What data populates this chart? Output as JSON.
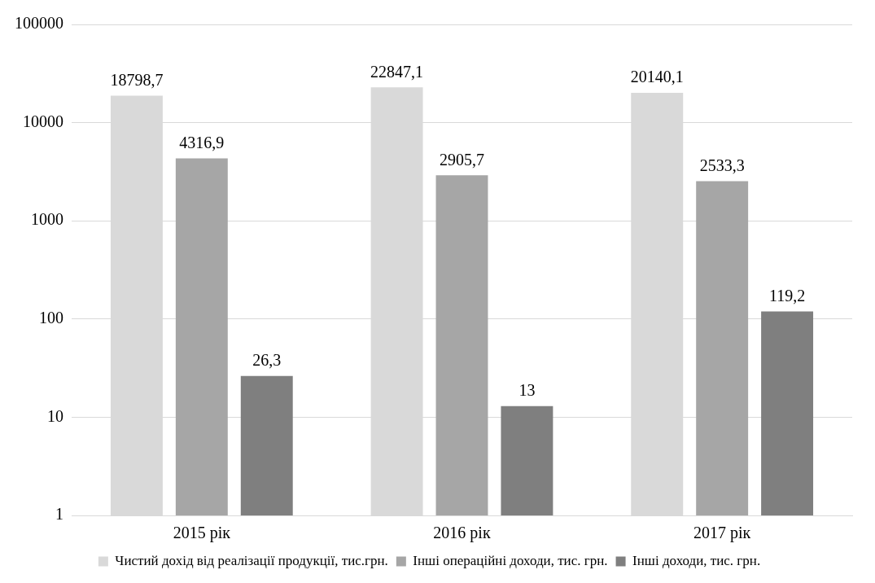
{
  "chart_data": {
    "type": "bar",
    "categories": [
      "2015 рік",
      "2016 рік",
      "2017 рік"
    ],
    "series": [
      {
        "name": "Чистий дохід від реалізації продукції, тис.грн.",
        "color": "#d9d9d9",
        "values": [
          18798.7,
          22847.1,
          20140.1
        ],
        "value_labels": [
          "18798,7",
          "22847,1",
          "20140,1"
        ]
      },
      {
        "name": "Інші операційні доходи, тис. грн.",
        "color": "#a6a6a6",
        "values": [
          4316.9,
          2905.7,
          2533.3
        ],
        "value_labels": [
          "4316,9",
          "2905,7",
          "2533,3"
        ]
      },
      {
        "name": "Інші доходи, тис. грн.",
        "color": "#7f7f7f",
        "values": [
          26.3,
          13,
          119.2
        ],
        "value_labels": [
          "26,3",
          "13",
          "119,2"
        ]
      }
    ],
    "log": "y",
    "ylim": [
      1,
      100000
    ],
    "yticks": [
      1,
      10,
      100,
      1000,
      10000,
      100000
    ],
    "grid": "y",
    "legend": "bottom"
  }
}
